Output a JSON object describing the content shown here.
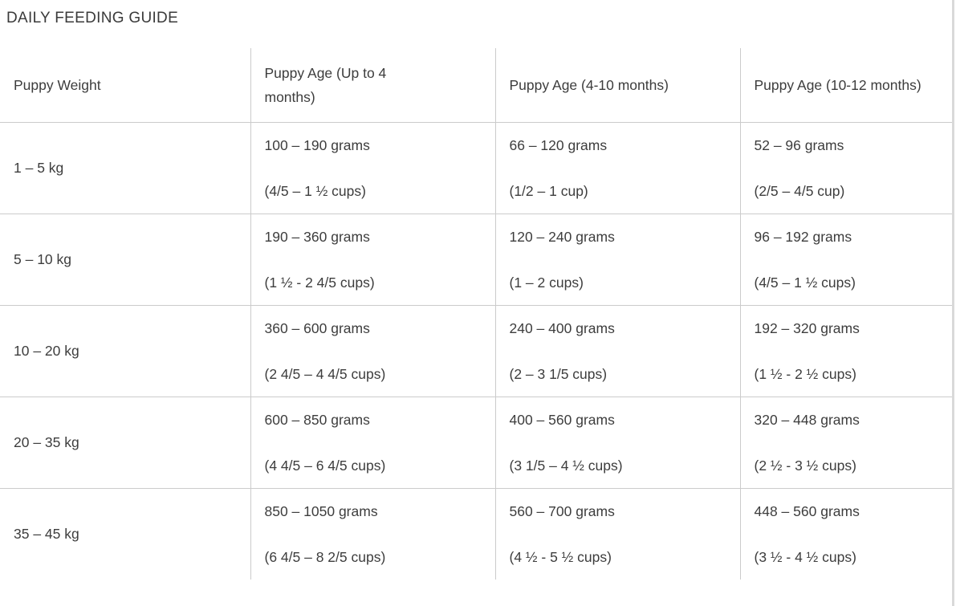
{
  "title": "DAILY FEEDING GUIDE",
  "table": {
    "columns": [
      "Puppy Weight",
      "Puppy Age (Up to 4 months)",
      "Puppy Age (4-10 months)",
      "Puppy Age (10-12 months)"
    ],
    "rows": [
      {
        "weight": "1 – 5 kg",
        "cells": [
          {
            "grams": "100 – 190 grams",
            "cups": "(4/5 – 1 ½ cups)"
          },
          {
            "grams": "66 – 120 grams",
            "cups": "(1/2 – 1 cup)"
          },
          {
            "grams": "52 – 96 grams",
            "cups": "(2/5 – 4/5 cup)"
          }
        ]
      },
      {
        "weight": "5 – 10 kg",
        "cells": [
          {
            "grams": "190 – 360 grams",
            "cups": "(1 ½ - 2 4/5 cups)"
          },
          {
            "grams": "120 – 240 grams",
            "cups": "(1 – 2 cups)"
          },
          {
            "grams": "96 – 192 grams",
            "cups": "(4/5 – 1 ½ cups)"
          }
        ]
      },
      {
        "weight": "10 – 20 kg",
        "cells": [
          {
            "grams": "360 – 600 grams",
            "cups": "(2 4/5 – 4 4/5 cups)"
          },
          {
            "grams": "240 – 400 grams",
            "cups": "(2 – 3 1/5 cups)"
          },
          {
            "grams": "192 – 320 grams",
            "cups": "(1 ½ - 2 ½ cups)"
          }
        ]
      },
      {
        "weight": "20 – 35 kg",
        "cells": [
          {
            "grams": "600 – 850 grams",
            "cups": "(4 4/5 – 6 4/5 cups)"
          },
          {
            "grams": "400 – 560 grams",
            "cups": "(3 1/5 – 4 ½ cups)"
          },
          {
            "grams": "320 – 448 grams",
            "cups": "(2 ½ - 3 ½ cups)"
          }
        ]
      },
      {
        "weight": "35 – 45 kg",
        "cells": [
          {
            "grams": "850 – 1050 grams",
            "cups": "(6 4/5 – 8 2/5 cups)"
          },
          {
            "grams": "560 – 700 grams",
            "cups": "(4 ½ - 5 ½ cups)"
          },
          {
            "grams": "448 – 560 grams",
            "cups": "(3 ½ - 4 ½ cups)"
          }
        ]
      }
    ]
  }
}
